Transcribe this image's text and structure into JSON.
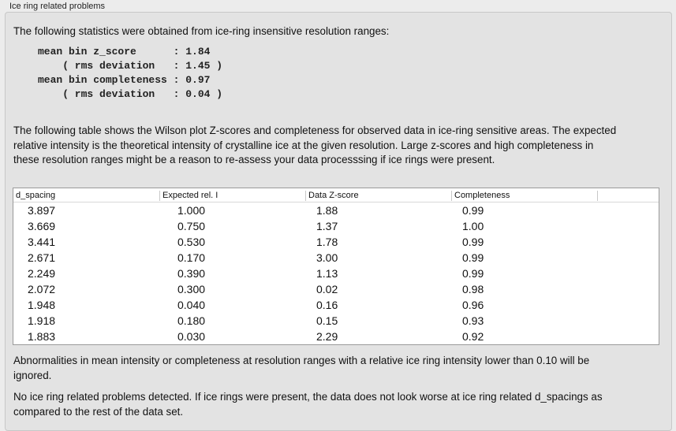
{
  "section_title": "Ice ring related problems",
  "intro": "The following statistics were obtained from ice-ring insensitive resolution ranges:",
  "stats": [
    "mean bin z_score      : 1.84",
    "    ( rms deviation   : 1.45 )",
    "mean bin completeness : 0.97",
    "    ( rms deviation   : 0.04 )"
  ],
  "table_description": "The following table shows the Wilson plot Z-scores and completeness for observed data in ice-ring sensitive areas. The expected relative intensity is the theoretical intensity of crystalline ice at the given resolution. Large z-scores and high completeness in these resolution ranges might be a reason to re-assess your data processsing if ice rings were present.",
  "table": {
    "columns": [
      "d_spacing",
      "Expected rel. I",
      "Data Z-score",
      "Completeness"
    ],
    "rows": [
      [
        "3.897",
        "1.000",
        "1.88",
        "0.99"
      ],
      [
        "3.669",
        "0.750",
        "1.37",
        "1.00"
      ],
      [
        "3.441",
        "0.530",
        "1.78",
        "0.99"
      ],
      [
        "2.671",
        "0.170",
        "3.00",
        "0.99"
      ],
      [
        "2.249",
        "0.390",
        "1.13",
        "0.99"
      ],
      [
        "2.072",
        "0.300",
        "0.02",
        "0.98"
      ],
      [
        "1.948",
        "0.040",
        "0.16",
        "0.96"
      ],
      [
        "1.918",
        "0.180",
        "0.15",
        "0.93"
      ],
      [
        "1.883",
        "0.030",
        "2.29",
        "0.92"
      ]
    ]
  },
  "note": "Abnormalities in mean intensity or completeness at resolution ranges with a relative ice ring intensity lower than 0.10 will be ignored.",
  "conclusion": "No ice ring related problems detected. If ice rings were present, the data does not look worse at ice ring related d_spacings as compared to the rest of the data set."
}
